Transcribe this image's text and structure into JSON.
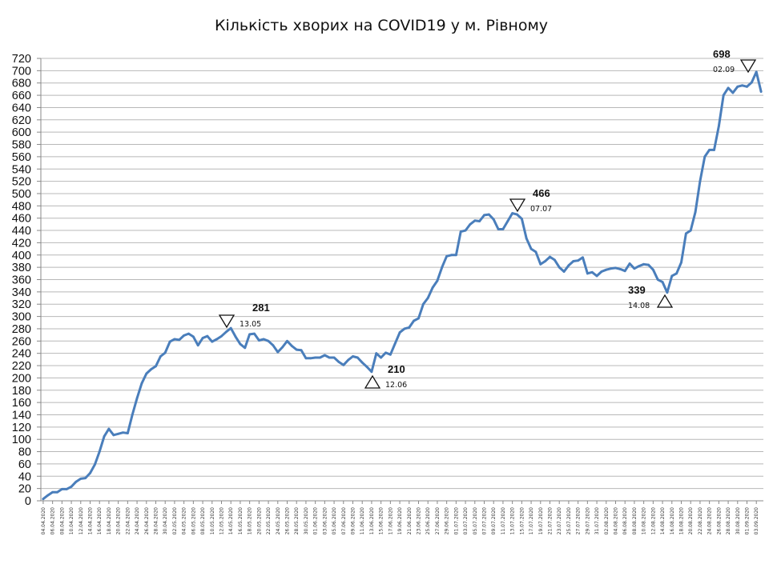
{
  "chart_data": {
    "type": "line",
    "title": "Кількість хворих на COVID19 у м. Рівному",
    "xlabel": "",
    "ylabel": "",
    "ylim": [
      0,
      720
    ],
    "yticks": [
      0,
      20,
      40,
      60,
      80,
      100,
      120,
      140,
      160,
      180,
      200,
      220,
      240,
      260,
      280,
      300,
      320,
      340,
      360,
      380,
      400,
      420,
      440,
      460,
      480,
      500,
      520,
      540,
      560,
      580,
      600,
      620,
      640,
      660,
      680,
      700,
      720
    ],
    "grid": "horizontal",
    "line_color": "#4a7ebb",
    "x_tick_labels": [
      "04.04.2020",
      "06.04.2020",
      "08.04.2020",
      "10.04.2020",
      "12.04.2020",
      "14.04.2020",
      "16.04.2020",
      "18.04.2020",
      "20.04.2020",
      "22.04.2020",
      "24.04.2020",
      "26.04.2020",
      "28.04.2020",
      "30.04.2020",
      "02.05.2020",
      "04.05.2020",
      "06.05.2020",
      "08.05.2020",
      "10.05.2020",
      "12.05.2020",
      "14.05.2020",
      "16.05.2020",
      "18.05.2020",
      "20.05.2020",
      "22.05.2020",
      "24.05.2020",
      "26.05.2020",
      "28.05.2020",
      "30.05.2020",
      "01.06.2020",
      "03.06.2020",
      "05.06.2020",
      "07.06.2020",
      "09.06.2020",
      "11.06.2020",
      "13.06.2020",
      "15.06.2020",
      "17.06.2020",
      "19.06.2020",
      "21.06.2020",
      "23.06.2020",
      "25.06.2020",
      "27.06.2020",
      "29.06.2020",
      "01.07.2020",
      "03.07.2020",
      "05.07.2020",
      "07.07.2020",
      "09.07.2020",
      "11.07.2020",
      "13.07.2020",
      "15.07.2020",
      "17.07.2020",
      "19.07.2020",
      "21.07.2020",
      "23.07.2020",
      "25.07.2020",
      "27.07.2020",
      "29.07.2020",
      "31.07.2020",
      "02.08.2020",
      "04.08.2020",
      "06.08.2020",
      "08.08.2020",
      "10.08.2020",
      "12.08.2020",
      "14.08.2020",
      "16.08.2020",
      "18.08.2020",
      "20.08.2020",
      "22.08.2020",
      "24.08.2020",
      "26.08.2020",
      "28.08.2020",
      "30.08.2020",
      "01.09.2020",
      "03.09.2020"
    ],
    "series": [
      {
        "values": [
          3,
          9,
          14,
          14,
          19,
          19,
          23,
          31,
          36,
          37,
          45,
          59,
          80,
          105,
          117,
          107,
          109,
          111,
          110,
          140,
          167,
          191,
          207,
          214,
          219,
          235,
          241,
          259,
          263,
          262,
          269,
          272,
          267,
          253,
          265,
          268,
          259,
          263,
          268,
          275,
          281,
          267,
          255,
          249,
          271,
          272,
          261,
          263,
          260,
          253,
          242,
          250,
          260,
          252,
          246,
          245,
          232,
          232,
          233,
          233,
          237,
          233,
          233,
          226,
          221,
          229,
          235,
          233,
          225,
          218,
          210,
          240,
          233,
          241,
          238,
          256,
          274,
          280,
          282,
          293,
          297,
          320,
          330,
          347,
          358,
          380,
          398,
          400,
          400,
          438,
          440,
          450,
          456,
          455,
          465,
          466,
          458,
          442,
          442,
          455,
          468,
          466,
          459,
          427,
          410,
          405,
          385,
          390,
          397,
          392,
          380,
          373,
          383,
          390,
          391,
          396,
          370,
          372,
          366,
          373,
          376,
          378,
          379,
          377,
          374,
          386,
          378,
          382,
          385,
          384,
          376,
          360,
          356,
          339,
          366,
          370,
          388,
          435,
          440,
          470,
          520,
          560,
          571,
          571,
          610,
          660,
          672,
          664,
          674,
          676,
          674,
          681,
          698,
          666
        ]
      }
    ],
    "annotations": [
      {
        "value": "281",
        "date": "13.05",
        "marker": "down"
      },
      {
        "value": "210",
        "date": "12.06",
        "marker": "up"
      },
      {
        "value": "466",
        "date": "07.07",
        "marker": "down"
      },
      {
        "value": "339",
        "date": "14.08",
        "marker": "up"
      },
      {
        "value": "698",
        "date": "02.09",
        "marker": "down"
      }
    ]
  }
}
